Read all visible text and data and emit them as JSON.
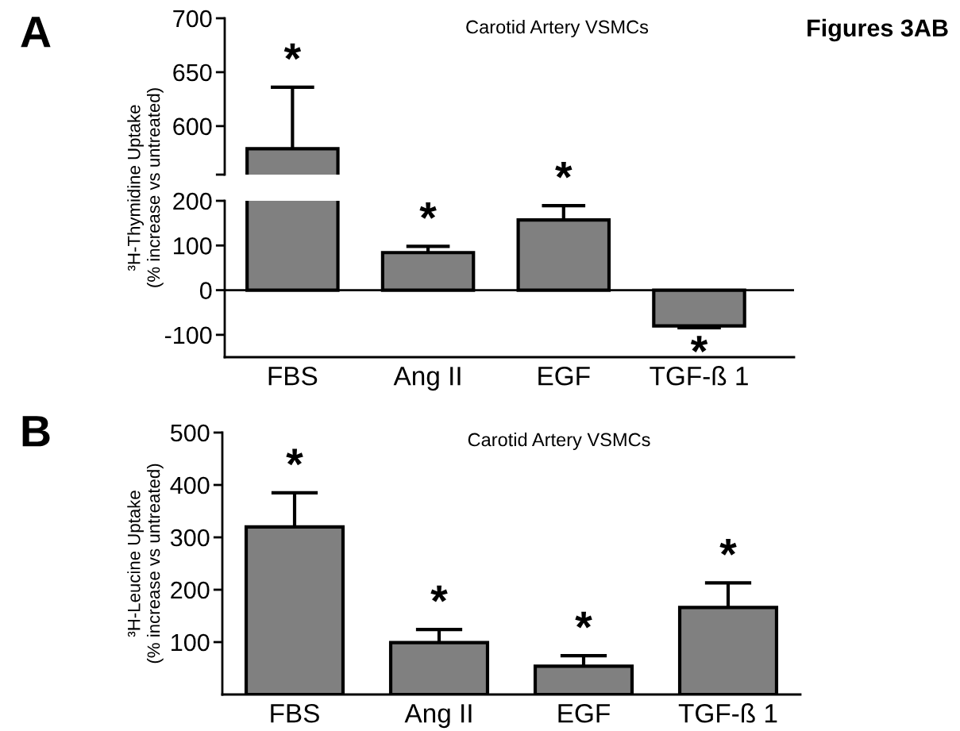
{
  "chart_data": [
    {
      "type": "bar",
      "title": "Carotid Artery VSMCs",
      "categories": [
        null,
        null,
        null,
        null
      ],
      "values": [
        579,
        null,
        null,
        null
      ],
      "errors": [
        [
          579,
          636
        ],
        null,
        null,
        null
      ],
      "value_labels": [
        "*",
        null,
        null,
        null
      ],
      "colors": [
        "#808080",
        "#808080",
        "#808080",
        "#808080"
      ],
      "ylim": [
        555,
        700
      ],
      "yticks": [
        {
          "value": 555,
          "label": null
        },
        600,
        650,
        700
      ],
      "tick_labels": "y",
      "grid": false,
      "ylabel": "³H-Thymidine Uptake\n(% increase vs untreated)",
      "annotations": [
        "A",
        "Figures 3AB"
      ]
    },
    {
      "type": "bar",
      "categories": [
        "FBS",
        "Ang II",
        "EGF",
        "TGF-ß 1"
      ],
      "values": [
        null,
        84,
        157,
        -80
      ],
      "errors": [
        null,
        [
          84,
          98
        ],
        [
          157,
          189
        ],
        [
          -84,
          -80
        ]
      ],
      "value_labels": [
        null,
        "*",
        "*",
        "*"
      ],
      "colors": [
        "#808080",
        "#808080",
        "#808080",
        "#808080"
      ],
      "ylim": [
        -150,
        200
      ],
      "yticks": [
        -100,
        0,
        100,
        200
      ],
      "grid": false,
      "ref_lines": [
        {
          "axis": "y",
          "value": 0,
          "color": "#000000"
        }
      ]
    },
    {
      "type": "bar",
      "title": "Carotid Artery VSMCs",
      "categories": [
        "FBS",
        "Ang II",
        "EGF",
        "TGF-ß 1"
      ],
      "values": [
        320,
        99,
        54,
        166
      ],
      "errors": [
        [
          320,
          385
        ],
        [
          99,
          124
        ],
        [
          54,
          74
        ],
        [
          166,
          213
        ]
      ],
      "value_labels": [
        "*",
        "*",
        "*",
        "*"
      ],
      "colors": [
        "#808080",
        "#808080",
        "#808080",
        "#808080"
      ],
      "ylim": [
        0,
        500
      ],
      "yticks": [
        100,
        200,
        300,
        400,
        500
      ],
      "grid": false,
      "ylabel": "³H-Leucine Uptake\n(% increase vs untreated)",
      "annotations": [
        "B"
      ]
    }
  ]
}
